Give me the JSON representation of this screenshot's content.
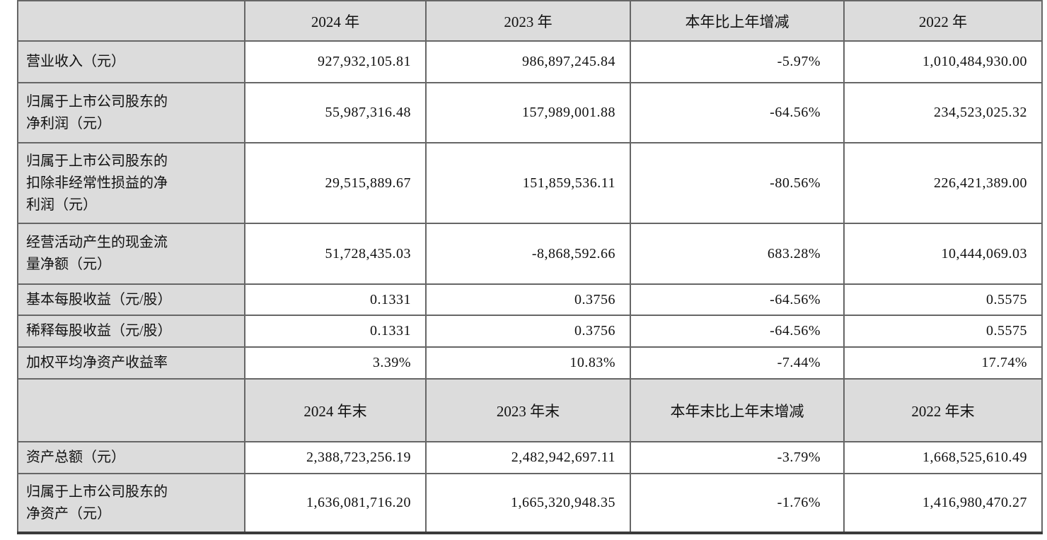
{
  "table": {
    "colors": {
      "header_background": "#dcdcdc",
      "label_column_background": "#dcdcdc",
      "cell_background": "#ffffff",
      "grid_border": "#666666",
      "bottom_border": "#3a3a3a",
      "text": "#111111"
    },
    "header1": {
      "blank": "",
      "col1": "2024 年",
      "col2": "2023 年",
      "col3": "本年比上年增减",
      "col4": "2022 年"
    },
    "rows1": [
      {
        "label": "营业收入（元）",
        "values": [
          "927,932,105.81",
          "986,897,245.84",
          "-5.97%",
          "1,010,484,930.00"
        ]
      },
      {
        "label": "归属于上市公司股东的\n净利润（元）",
        "values": [
          "55,987,316.48",
          "157,989,001.88",
          "-64.56%",
          "234,523,025.32"
        ]
      },
      {
        "label": "归属于上市公司股东的\n扣除非经常性损益的净\n利润（元）",
        "values": [
          "29,515,889.67",
          "151,859,536.11",
          "-80.56%",
          "226,421,389.00"
        ]
      },
      {
        "label": "经营活动产生的现金流\n量净额（元）",
        "values": [
          "51,728,435.03",
          "-8,868,592.66",
          "683.28%",
          "10,444,069.03"
        ]
      },
      {
        "label": "基本每股收益（元/股）",
        "values": [
          "0.1331",
          "0.3756",
          "-64.56%",
          "0.5575"
        ]
      },
      {
        "label": "稀释每股收益（元/股）",
        "values": [
          "0.1331",
          "0.3756",
          "-64.56%",
          "0.5575"
        ]
      },
      {
        "label": "加权平均净资产收益率",
        "values": [
          "3.39%",
          "10.83%",
          "-7.44%",
          "17.74%"
        ]
      }
    ],
    "header2": {
      "blank": "",
      "col1": "2024 年末",
      "col2": "2023 年末",
      "col3": "本年末比上年末增减",
      "col4": "2022 年末"
    },
    "rows2": [
      {
        "label": "资产总额（元）",
        "values": [
          "2,388,723,256.19",
          "2,482,942,697.11",
          "-3.79%",
          "1,668,525,610.49"
        ]
      },
      {
        "label": "归属于上市公司股东的\n净资产（元）",
        "values": [
          "1,636,081,716.20",
          "1,665,320,948.35",
          "-1.76%",
          "1,416,980,470.27"
        ]
      }
    ]
  }
}
